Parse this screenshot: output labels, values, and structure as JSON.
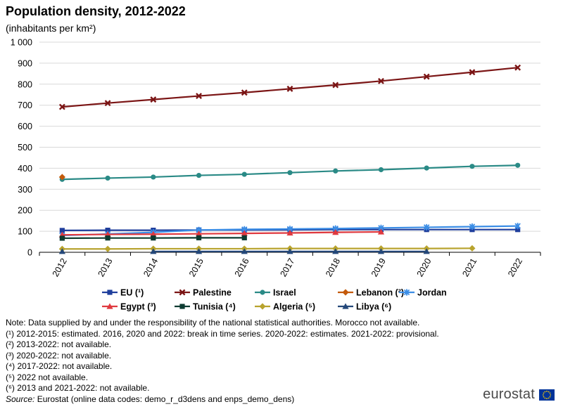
{
  "chart_data": {
    "type": "line",
    "title": "Population density, 2012-2022",
    "subtitle": "(inhabitants per km²)",
    "xlabel": "",
    "ylabel": "",
    "ylim": [
      0,
      1000
    ],
    "yticks": [
      0,
      100,
      200,
      300,
      400,
      500,
      600,
      700,
      800,
      900,
      1000
    ],
    "ytick_labels": [
      "0",
      "100",
      "200",
      "300",
      "400",
      "500",
      "600",
      "700",
      "800",
      "900",
      "1 000"
    ],
    "categories": [
      "2012",
      "2013",
      "2014",
      "2015",
      "2016",
      "2017",
      "2018",
      "2019",
      "2020",
      "2021",
      "2022"
    ],
    "grid": true,
    "legend_position": "bottom",
    "series": [
      {
        "name": "EU (¹)",
        "color": "#1f3e9c",
        "marker": "square",
        "values": [
          104,
          105,
          105,
          106,
          106,
          107,
          108,
          108,
          108,
          108,
          108
        ]
      },
      {
        "name": "Palestine",
        "color": "#7b1515",
        "marker": "x",
        "values": [
          692,
          710,
          727,
          744,
          760,
          778,
          796,
          815,
          836,
          857,
          879
        ]
      },
      {
        "name": "Israel",
        "color": "#2a8a86",
        "marker": "circle",
        "values": [
          347,
          353,
          358,
          366,
          371,
          379,
          387,
          393,
          401,
          409,
          414
        ]
      },
      {
        "name": "Lebanon (²)",
        "color": "#c45a0b",
        "marker": "diamond",
        "values": [
          358,
          null,
          null,
          null,
          null,
          null,
          null,
          null,
          null,
          null,
          null
        ]
      },
      {
        "name": "Jordan",
        "color": "#3c8ee6",
        "marker": "star",
        "values": [
          80,
          87,
          95,
          106,
          109,
          111,
          113,
          116,
          119,
          122,
          125
        ]
      },
      {
        "name": "Egypt (³)",
        "color": "#e0393f",
        "marker": "triangle",
        "values": [
          83,
          85,
          86,
          88,
          90,
          92,
          95,
          97,
          null,
          null,
          null
        ]
      },
      {
        "name": "Tunisia (⁴)",
        "color": "#0d3b31",
        "marker": "square",
        "values": [
          67,
          68,
          68,
          69,
          69,
          null,
          null,
          null,
          null,
          null,
          null
        ]
      },
      {
        "name": "Algeria (⁵)",
        "color": "#b8a32e",
        "marker": "diamond",
        "values": [
          16,
          16,
          17,
          17,
          17,
          18,
          18,
          18,
          18,
          19,
          null
        ]
      },
      {
        "name": "Libya (⁶)",
        "color": "#24487a",
        "marker": "triangle",
        "values": [
          4,
          null,
          4,
          4,
          4,
          4,
          4,
          4,
          4,
          null,
          null
        ]
      }
    ]
  },
  "notes": [
    "Note: Data supplied by and under the responsibility of the national statistical authorities. Morocco not available.",
    "(¹) 2012-2015: estimated. 2016, 2020 and 2022: break in time series. 2020-2022: estimates. 2021-2022: provisional.",
    "(²) 2013-2022: not available.",
    "(³) 2020-2022: not available.",
    "(⁴) 2017-2022: not available.",
    "(⁵) 2022 not available.",
    "(⁶) 2013 and 2021-2022: not available."
  ],
  "source": {
    "label": "Source:",
    "text": " Eurostat (online data codes: demo_r_d3dens and enps_demo_dens)"
  },
  "branding": {
    "logo_text": "eurostat",
    "flag_color": "#003399",
    "star_color": "#ffcc00"
  }
}
